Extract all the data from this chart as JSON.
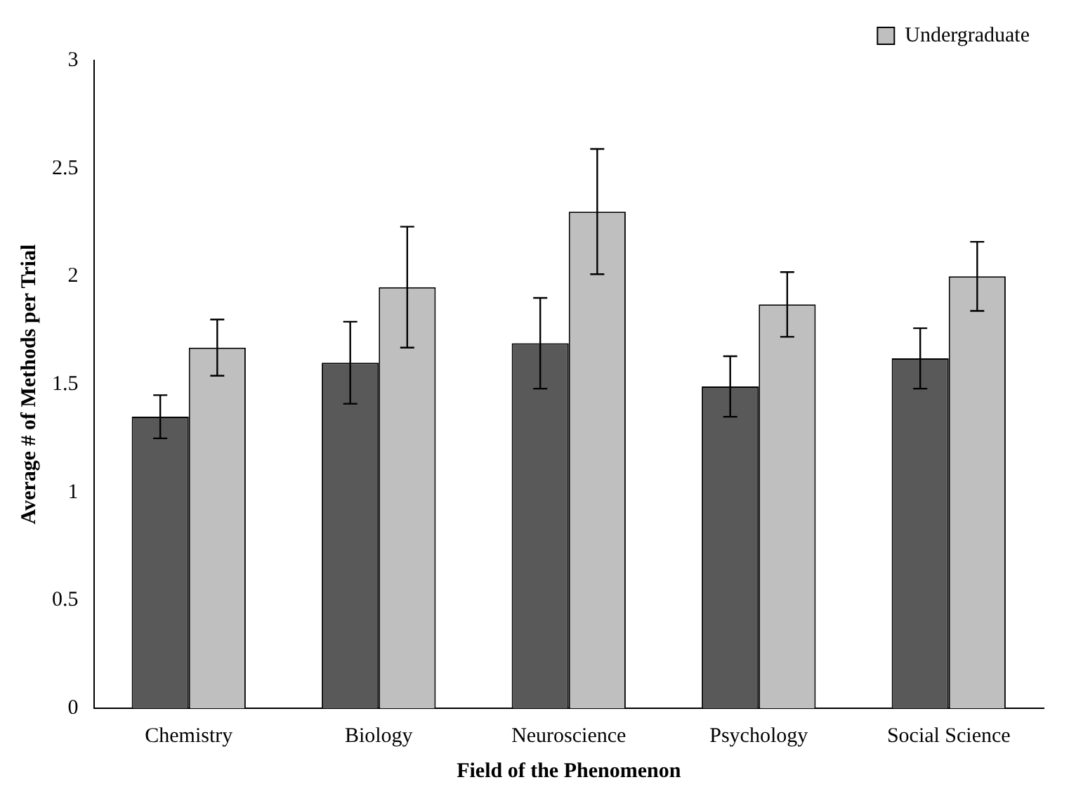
{
  "chart_data": {
    "type": "bar",
    "xlabel": "Field of the Phenomenon",
    "ylabel": "Average # of Methods per Trial",
    "categories": [
      "Chemistry",
      "Biology",
      "Neuroscience",
      "Psychology",
      "Social Science"
    ],
    "series": [
      {
        "color": "#595959",
        "values": [
          1.35,
          1.6,
          1.69,
          1.49,
          1.62
        ],
        "errors": [
          0.1,
          0.19,
          0.21,
          0.14,
          0.14
        ]
      },
      {
        "name": "Undergraduate",
        "color": "#bfbfbf",
        "values": [
          1.67,
          1.95,
          2.3,
          1.87,
          2.0
        ],
        "errors": [
          0.13,
          0.28,
          0.29,
          0.15,
          0.16
        ]
      }
    ],
    "ylim": [
      0,
      3
    ],
    "yticks": [
      0,
      0.5,
      1,
      1.5,
      2,
      2.5,
      3
    ],
    "grid": false,
    "legend": "top right"
  }
}
